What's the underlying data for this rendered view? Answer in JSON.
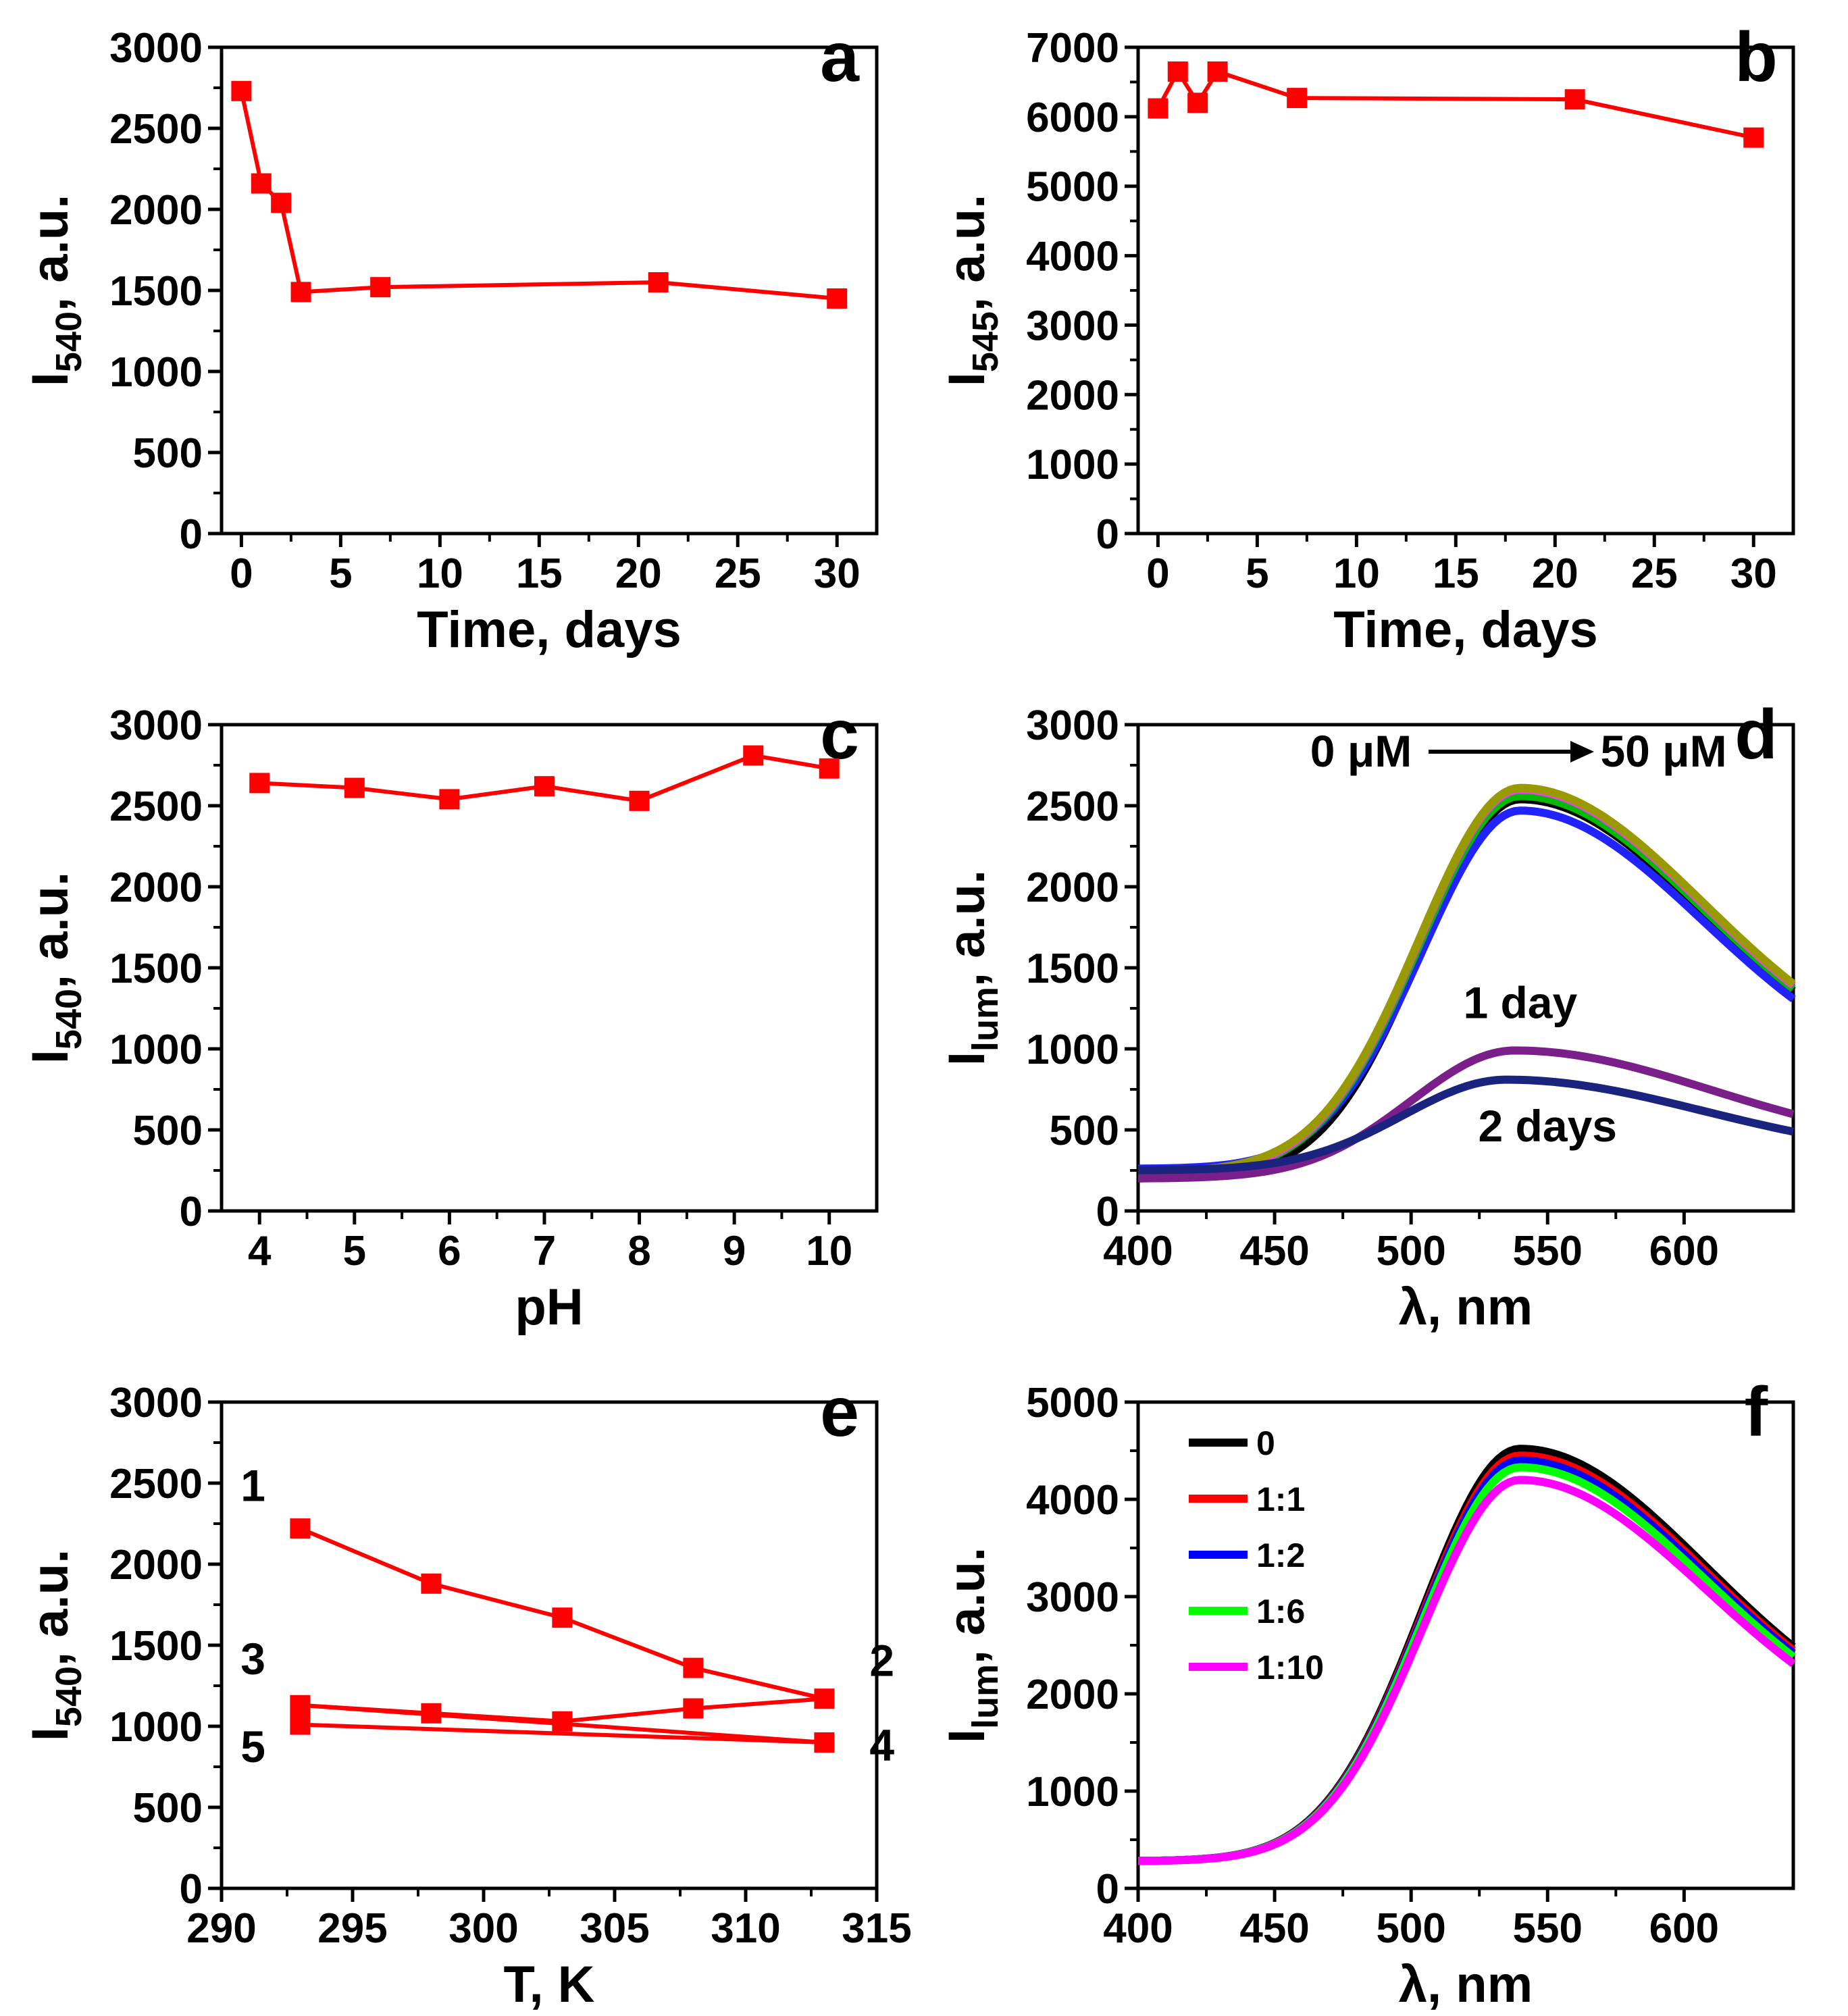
{
  "figure_colors": {
    "axis": "#000000",
    "marker": "#ff0000",
    "line": "#ff0000"
  },
  "chart_data": [
    {
      "id": "a",
      "panel_label": "a",
      "type": "line",
      "xlabel": "Time, days",
      "ylabel_main": "I",
      "ylabel_sub": "540",
      "ylabel_rest": ", a.u.",
      "xlim": [
        -1,
        32
      ],
      "ylim": [
        0,
        3000
      ],
      "xticks": [
        0,
        5,
        10,
        15,
        20,
        25,
        30
      ],
      "yticks": [
        0,
        500,
        1000,
        1500,
        2000,
        2500,
        3000
      ],
      "series": [
        {
          "name": "I540",
          "color": "#ff0000",
          "marker": "square",
          "x": [
            0,
            1,
            2,
            3,
            7,
            21,
            30
          ],
          "y": [
            2730,
            2160,
            2040,
            1490,
            1520,
            1550,
            1450
          ]
        }
      ]
    },
    {
      "id": "b",
      "panel_label": "b",
      "type": "line",
      "xlabel": "Time, days",
      "ylabel_main": "I",
      "ylabel_sub": "545",
      "ylabel_rest": ", a.u.",
      "xlim": [
        -1,
        32
      ],
      "ylim": [
        0,
        7000
      ],
      "xticks": [
        0,
        5,
        10,
        15,
        20,
        25,
        30
      ],
      "yticks": [
        0,
        1000,
        2000,
        3000,
        4000,
        5000,
        6000,
        7000
      ],
      "series": [
        {
          "name": "I545",
          "color": "#ff0000",
          "marker": "square",
          "x": [
            0,
            1,
            2,
            3,
            7,
            21,
            30
          ],
          "y": [
            6120,
            6650,
            6200,
            6650,
            6270,
            6250,
            5700
          ]
        }
      ]
    },
    {
      "id": "c",
      "panel_label": "c",
      "type": "line",
      "xlabel": "pH",
      "ylabel_main": "I",
      "ylabel_sub": "540",
      "ylabel_rest": ", a.u.",
      "xlim": [
        3.6,
        10.5
      ],
      "ylim": [
        0,
        3000
      ],
      "xticks": [
        4,
        5,
        6,
        7,
        8,
        9,
        10
      ],
      "yticks": [
        0,
        500,
        1000,
        1500,
        2000,
        2500,
        3000
      ],
      "series": [
        {
          "name": "I540",
          "color": "#ff0000",
          "marker": "square",
          "x": [
            4,
            5,
            6,
            7,
            8,
            9.2,
            10
          ],
          "y": [
            2640,
            2610,
            2540,
            2620,
            2530,
            2810,
            2730
          ]
        }
      ]
    },
    {
      "id": "d",
      "panel_label": "d",
      "type": "line",
      "xlabel": "λ, nm",
      "ylabel_main": "I",
      "ylabel_sub": "lum",
      "ylabel_rest": ", a.u.",
      "xlim": [
        400,
        640
      ],
      "ylim": [
        0,
        3000
      ],
      "xticks": [
        400,
        450,
        500,
        550,
        600
      ],
      "yticks": [
        0,
        500,
        1000,
        1500,
        2000,
        2500,
        3000
      ],
      "annotations": [
        "0 μM",
        "50 μM",
        "1 day",
        "2 days"
      ],
      "series": [
        {
          "name": "0 μM",
          "color": "#000000",
          "base": 200,
          "peak": 2540,
          "center": 540,
          "sL": 36,
          "sR": 67,
          "end": 780
        },
        {
          "name": "c2",
          "color": "#2222ff",
          "base": 260,
          "peak": 2470,
          "center": 540,
          "sL": 36,
          "sR": 67,
          "end": 740
        },
        {
          "name": "c3",
          "color": "#00bb00",
          "base": 220,
          "peak": 2560,
          "center": 540,
          "sL": 37,
          "sR": 67,
          "end": 790
        },
        {
          "name": "c4",
          "color": "#ff33ff",
          "base": 230,
          "peak": 2600,
          "center": 540,
          "sL": 37,
          "sR": 67,
          "end": 800
        },
        {
          "name": "50 μM",
          "color": "#999900",
          "base": 240,
          "peak": 2610,
          "center": 540,
          "sL": 37,
          "sR": 67,
          "end": 810
        },
        {
          "name": "1 day",
          "color": "#7a1f8a",
          "base": 200,
          "peak": 990,
          "center": 538,
          "sL": 38,
          "sR": 72,
          "end": 370
        },
        {
          "name": "2 days",
          "color": "#1a237e",
          "base": 250,
          "peak": 810,
          "center": 535,
          "sL": 38,
          "sR": 72,
          "end": 320
        }
      ]
    },
    {
      "id": "e",
      "panel_label": "e",
      "type": "line",
      "xlabel": "T, K",
      "ylabel_main": "I",
      "ylabel_sub": "540",
      "ylabel_rest": ", a.u.",
      "xlim": [
        290,
        315
      ],
      "ylim": [
        0,
        3000
      ],
      "xticks": [
        290,
        295,
        300,
        305,
        310,
        315
      ],
      "yticks": [
        0,
        500,
        1000,
        1500,
        2000,
        2500,
        3000
      ],
      "segment_labels": [
        "1",
        "2",
        "3",
        "4",
        "5"
      ],
      "series": [
        {
          "name": "cycle",
          "color": "#ff0000",
          "marker": "square",
          "x": [
            293,
            298,
            303,
            308,
            313,
            308,
            303,
            298,
            293,
            313,
            293
          ],
          "y": [
            2220,
            1880,
            1670,
            1360,
            1170,
            1110,
            1030,
            1080,
            1130,
            900,
            1010
          ]
        }
      ]
    },
    {
      "id": "f",
      "panel_label": "f",
      "type": "line",
      "xlabel": "λ, nm",
      "ylabel_main": "I",
      "ylabel_sub": "lum",
      "ylabel_rest": ", a.u.",
      "xlim": [
        400,
        640
      ],
      "ylim": [
        0,
        5000
      ],
      "xticks": [
        400,
        450,
        500,
        550,
        600
      ],
      "yticks": [
        0,
        1000,
        2000,
        3000,
        4000,
        5000
      ],
      "legend": [
        "0",
        "1:1",
        "1:2",
        "1:6",
        "1:10"
      ],
      "series": [
        {
          "name": "0",
          "color": "#000000",
          "base": 280,
          "peak": 4520,
          "center": 540,
          "sL": 36,
          "sR": 68,
          "end": 1440
        },
        {
          "name": "1:1",
          "color": "#ff0000",
          "base": 280,
          "peak": 4450,
          "center": 540,
          "sL": 36,
          "sR": 68,
          "end": 1420
        },
        {
          "name": "1:2",
          "color": "#0000ff",
          "base": 280,
          "peak": 4400,
          "center": 540,
          "sL": 36,
          "sR": 68,
          "end": 1400
        },
        {
          "name": "1:6",
          "color": "#00ff00",
          "base": 280,
          "peak": 4330,
          "center": 540,
          "sL": 36,
          "sR": 68,
          "end": 1380
        },
        {
          "name": "1:10",
          "color": "#ff00ff",
          "base": 280,
          "peak": 4200,
          "center": 540,
          "sL": 36,
          "sR": 68,
          "end": 1340
        }
      ]
    }
  ]
}
